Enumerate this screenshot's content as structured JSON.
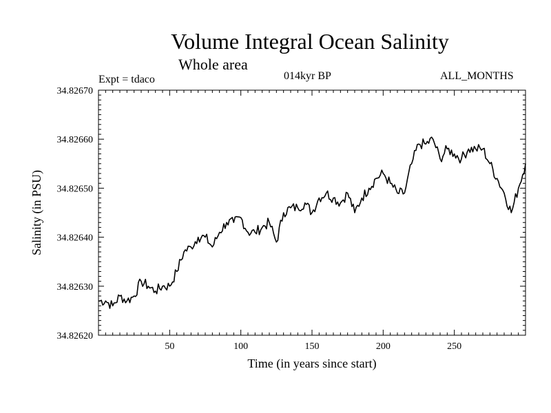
{
  "header": {
    "title": "Volume Integral Ocean Salinity",
    "subtitle": "Whole area",
    "experiment": "Expt = tdaco",
    "period": "014kyr BP",
    "months": "ALL_MONTHS"
  },
  "chart_data": {
    "type": "line",
    "title": "Volume Integral Ocean Salinity",
    "subtitle": "Whole area",
    "xlabel": "Time (in years since start)",
    "ylabel": "Salinity (in PSU)",
    "xlim": [
      0,
      300
    ],
    "ylim": [
      34.8262,
      34.8267
    ],
    "xticks": [
      50,
      100,
      150,
      200,
      250
    ],
    "yticks": [
      34.8262,
      34.8263,
      34.8264,
      34.8265,
      34.8266,
      34.8267
    ],
    "ytick_labels": [
      "34.82620",
      "34.82630",
      "34.82640",
      "34.82650",
      "34.82660",
      "34.82670"
    ],
    "grid": false,
    "series": [
      {
        "name": "Salinity",
        "x": [
          0,
          5,
          10,
          15,
          20,
          25,
          30,
          35,
          40,
          45,
          50,
          55,
          60,
          65,
          70,
          75,
          80,
          85,
          90,
          95,
          100,
          105,
          110,
          115,
          120,
          125,
          130,
          135,
          140,
          145,
          150,
          155,
          160,
          165,
          170,
          175,
          180,
          185,
          190,
          195,
          200,
          205,
          210,
          215,
          220,
          225,
          230,
          235,
          240,
          245,
          250,
          255,
          260,
          265,
          270,
          275,
          280,
          285,
          290,
          295,
          300
        ],
        "values": [
          34.82627,
          34.82627,
          34.82626,
          34.82628,
          34.82627,
          34.82628,
          34.82631,
          34.8263,
          34.82629,
          34.8263,
          34.8263,
          34.82633,
          34.82637,
          34.82638,
          34.8264,
          34.8264,
          34.82638,
          34.82641,
          34.82643,
          34.82643,
          34.82644,
          34.82641,
          34.82641,
          34.82642,
          34.82643,
          34.82639,
          34.82645,
          34.82646,
          34.82646,
          34.82647,
          34.82645,
          34.82648,
          34.82649,
          34.82648,
          34.82647,
          34.82649,
          34.82645,
          34.82648,
          34.8265,
          34.82652,
          34.82653,
          34.82651,
          34.82649,
          34.82649,
          34.82655,
          34.82659,
          34.82659,
          34.8266,
          34.82656,
          34.82658,
          34.82657,
          34.82656,
          34.82658,
          34.82658,
          34.82658,
          34.82655,
          34.82652,
          34.82649,
          34.82645,
          34.8265,
          34.82655
        ]
      }
    ]
  }
}
